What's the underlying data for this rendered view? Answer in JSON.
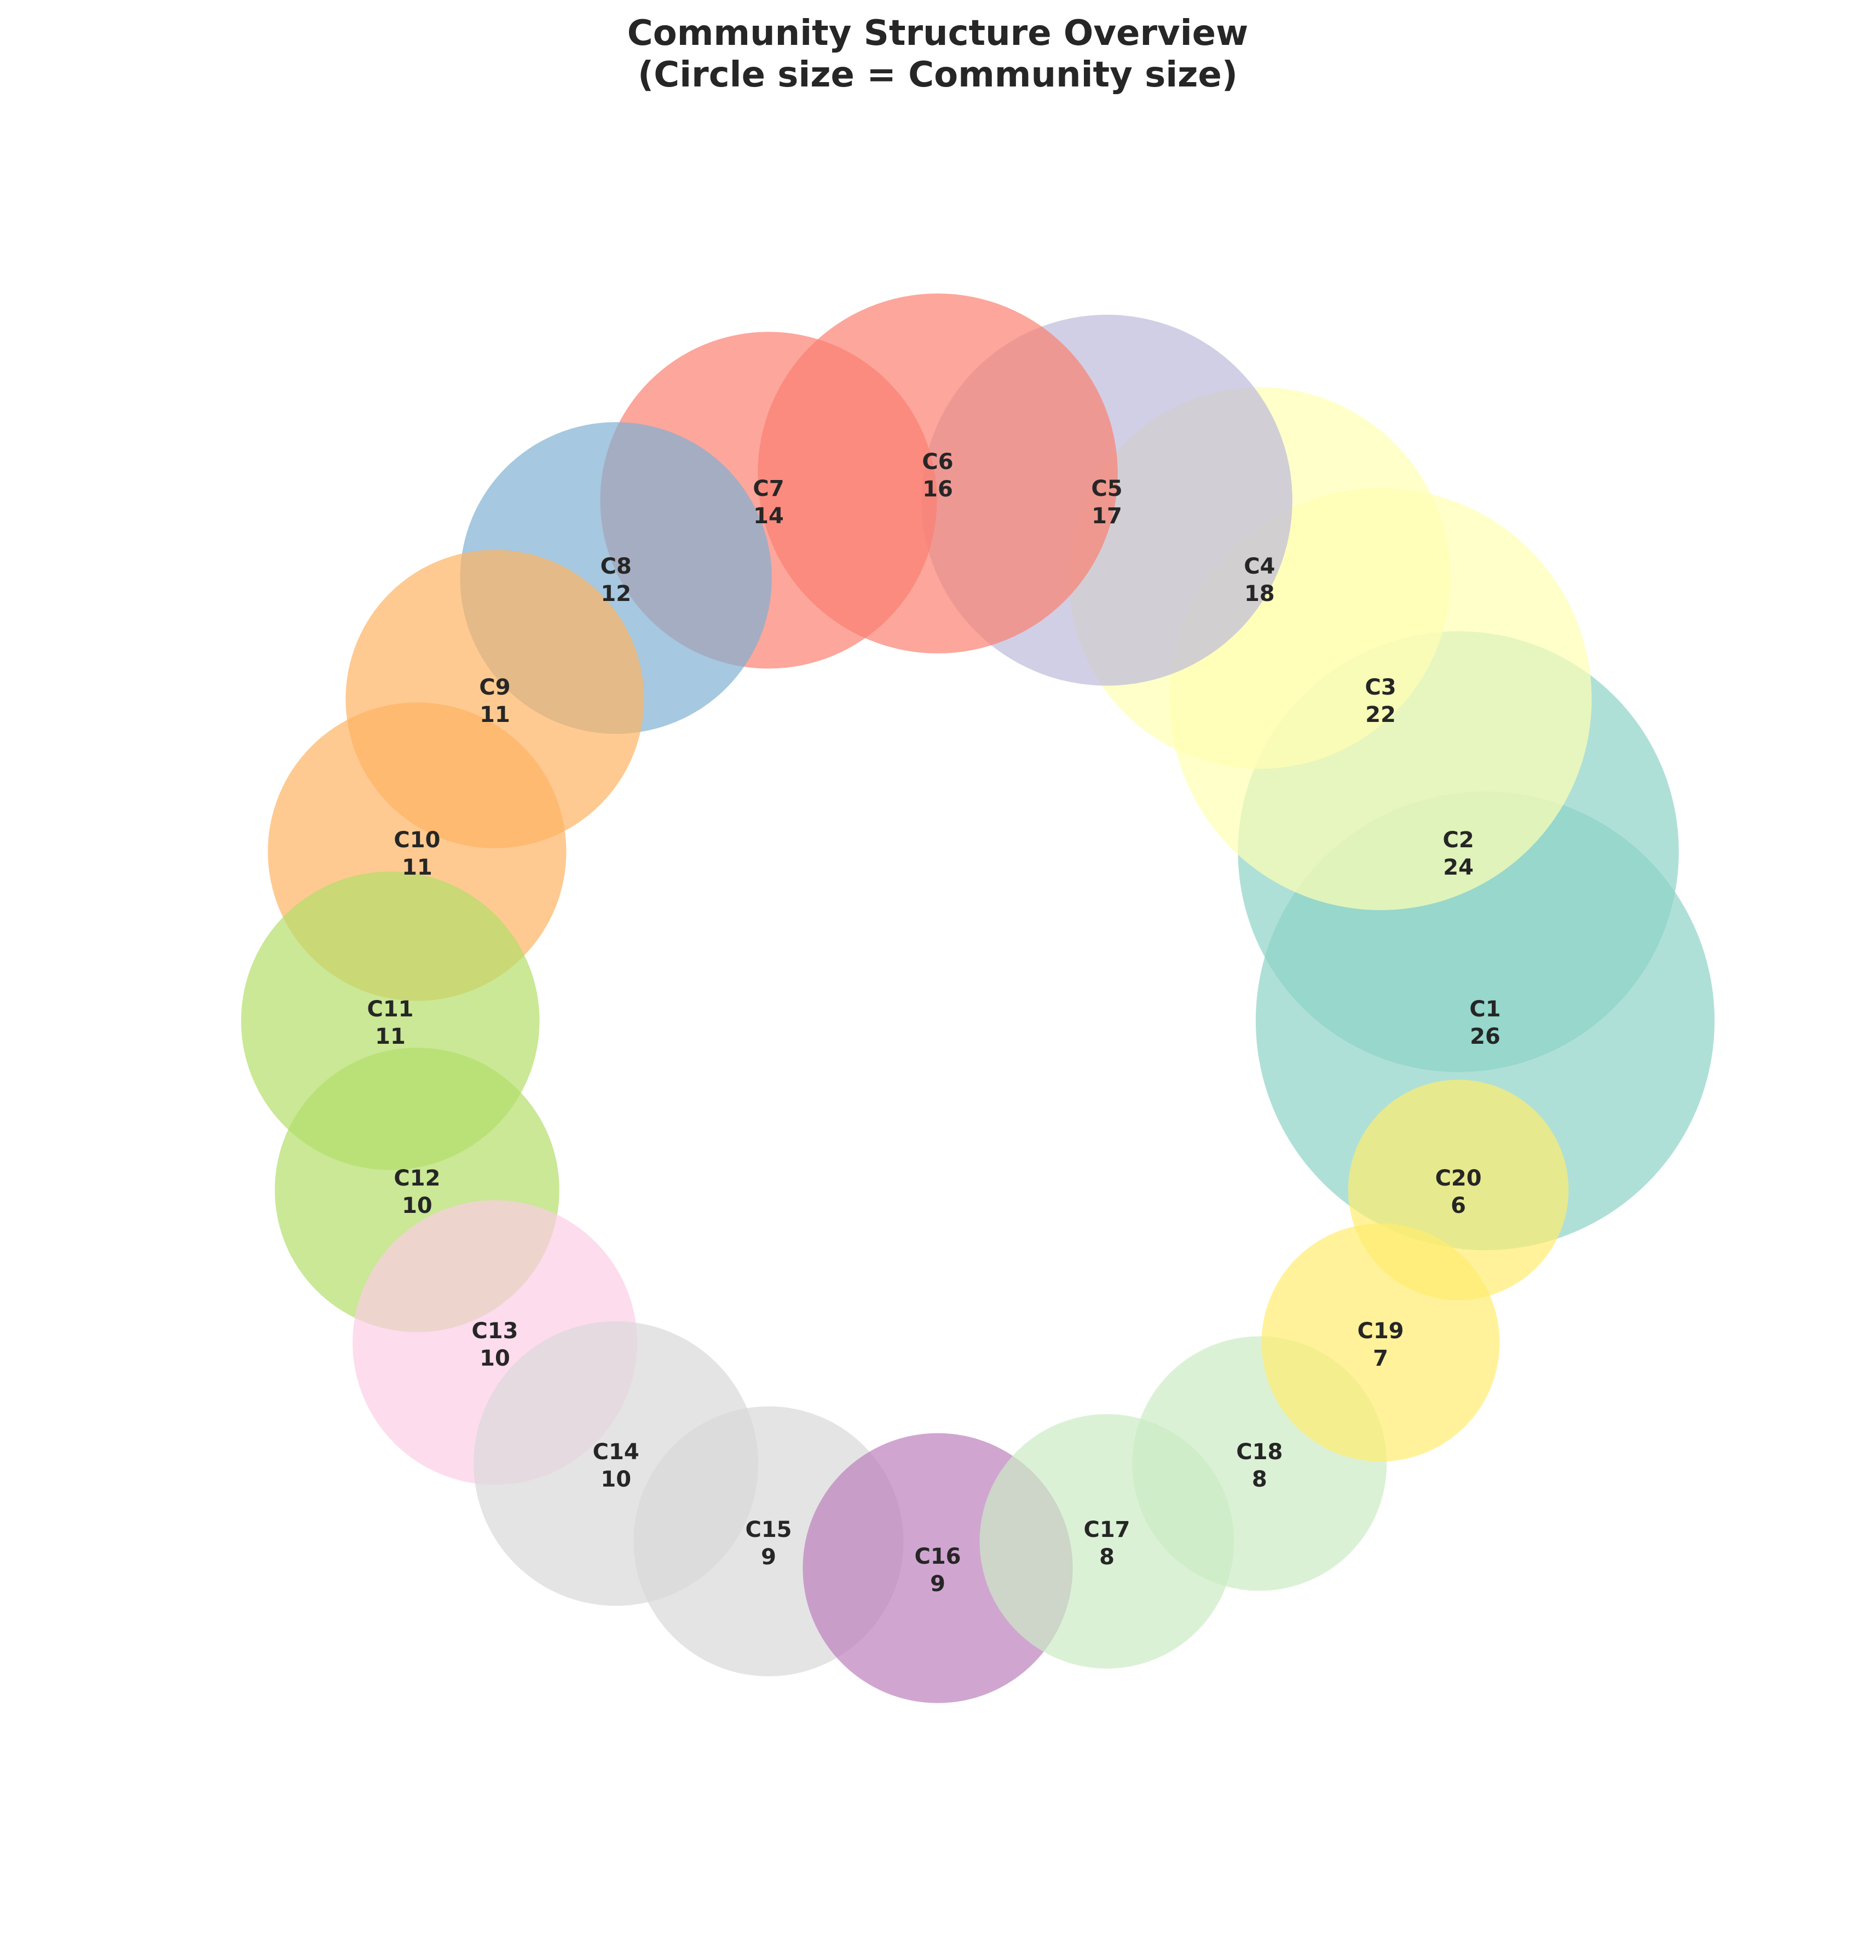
{
  "chart_data": {
    "type": "bubble",
    "title": "Community Structure Overview",
    "subtitle": "(Circle size = Community size)",
    "encoding": "circle area proportional to community size",
    "layout": "circular ring, clockwise starting from the right",
    "grid": false,
    "axes": false,
    "communities": [
      {
        "id": "C1",
        "size": 26,
        "color": "#8dd3c7"
      },
      {
        "id": "C2",
        "size": 24,
        "color": "#8dd3c7"
      },
      {
        "id": "C3",
        "size": 22,
        "color": "#ffffb3"
      },
      {
        "id": "C4",
        "size": 18,
        "color": "#ffffb3"
      },
      {
        "id": "C5",
        "size": 17,
        "color": "#bebada"
      },
      {
        "id": "C6",
        "size": 16,
        "color": "#fb8072"
      },
      {
        "id": "C7",
        "size": 14,
        "color": "#fb8072"
      },
      {
        "id": "C8",
        "size": 12,
        "color": "#80b1d3"
      },
      {
        "id": "C9",
        "size": 11,
        "color": "#fdb462"
      },
      {
        "id": "C10",
        "size": 11,
        "color": "#fdb462"
      },
      {
        "id": "C11",
        "size": 11,
        "color": "#b3de69"
      },
      {
        "id": "C12",
        "size": 10,
        "color": "#b3de69"
      },
      {
        "id": "C13",
        "size": 10,
        "color": "#fccde5"
      },
      {
        "id": "C14",
        "size": 10,
        "color": "#d9d9d9"
      },
      {
        "id": "C15",
        "size": 9,
        "color": "#d9d9d9"
      },
      {
        "id": "C16",
        "size": 9,
        "color": "#bc80bd"
      },
      {
        "id": "C17",
        "size": 8,
        "color": "#ccebc5"
      },
      {
        "id": "C18",
        "size": 8,
        "color": "#ccebc5"
      },
      {
        "id": "C19",
        "size": 7,
        "color": "#ffed6f"
      },
      {
        "id": "C20",
        "size": 6,
        "color": "#ffed6f"
      }
    ]
  }
}
